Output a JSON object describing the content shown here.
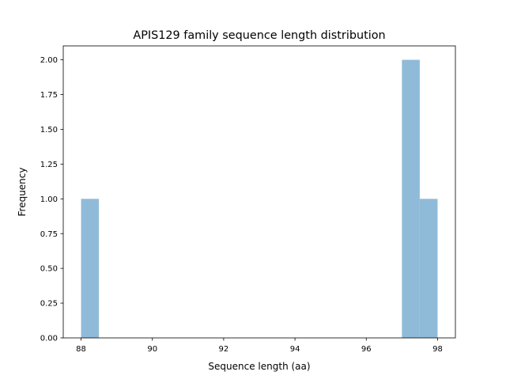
{
  "chart_data": {
    "type": "bar",
    "title": "APIS129 family sequence length distribution",
    "xlabel": "Sequence length (aa)",
    "ylabel": "Frequency",
    "xlim": [
      87.5,
      98.5
    ],
    "ylim": [
      0,
      2.1
    ],
    "xticks": [
      "88",
      "90",
      "92",
      "94",
      "96",
      "98"
    ],
    "yticks": [
      "0.00",
      "0.25",
      "0.50",
      "0.75",
      "1.00",
      "1.25",
      "1.50",
      "1.75",
      "2.00"
    ],
    "bins": [
      {
        "start": 88.0,
        "end": 88.5,
        "count": 1
      },
      {
        "start": 97.0,
        "end": 97.5,
        "count": 2
      },
      {
        "start": 97.5,
        "end": 98.0,
        "count": 1
      }
    ],
    "bar_color": "#8fbbd9",
    "grid": false,
    "legend": "none"
  }
}
